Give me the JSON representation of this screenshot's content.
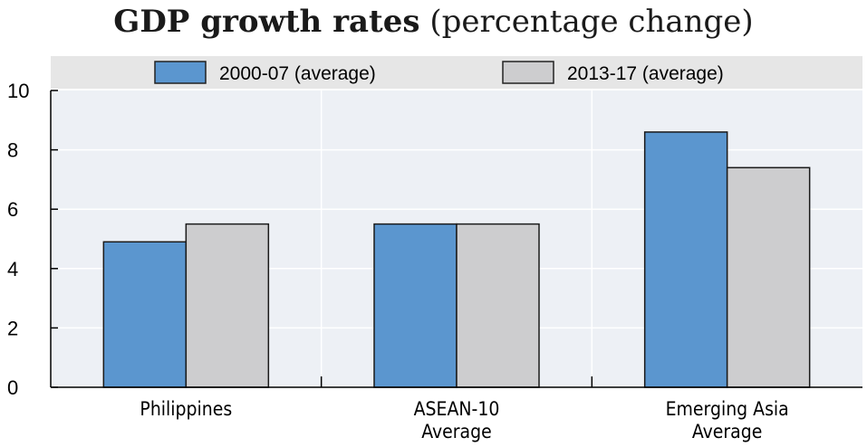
{
  "chart_data": {
    "type": "bar",
    "title_bold": "GDP growth rates",
    "title_rest": "(percentage change)",
    "categories": [
      [
        "Philippines"
      ],
      [
        "ASEAN-10",
        "Average"
      ],
      [
        "Emerging Asia",
        "Average"
      ]
    ],
    "series": [
      {
        "name": "2000-07 (average)",
        "values": [
          4.9,
          5.5,
          8.6
        ],
        "color": "#5b96cf"
      },
      {
        "name": "2013-17 (average)",
        "values": [
          5.5,
          5.5,
          7.4
        ],
        "color": "#cdcdcf"
      }
    ],
    "ylim": [
      0,
      10
    ],
    "yticks": [
      0,
      2,
      4,
      6,
      8,
      10
    ],
    "grid": true,
    "legend_position": "top",
    "colors": {
      "plot_background": "#edf0f5",
      "legend_background": "#e6e6e6",
      "grid": "#ffffff"
    }
  }
}
